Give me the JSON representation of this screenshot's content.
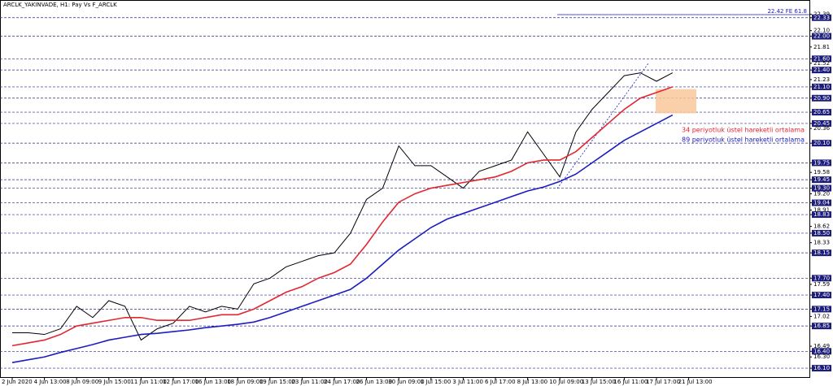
{
  "chart_data": {
    "type": "line",
    "title": "ARCLK_YAKINVADE, H1: Pay Vs F_ARCLK",
    "annotation": "22.42 FE 61.8",
    "categories": [
      "2 Jun 2020",
      null,
      "4 Jun 13:00",
      null,
      "8 Jun 09:00",
      null,
      "9 Jun 15:00",
      null,
      "11 Jun 11:00",
      null,
      "12 Jun 17:00",
      null,
      "16 Jun 13:00",
      null,
      "18 Jun 09:00",
      null,
      "19 Jun 15:00",
      null,
      "23 Jun 11:00",
      null,
      "24 Jun 17:00",
      null,
      "26 Jun 13:00",
      null,
      "30 Jun 09:00",
      null,
      "1 Jul 15:00",
      null,
      "3 Jul 11:00",
      null,
      "6 Jul 17:00",
      null,
      "8 Jul 13:00",
      null,
      "10 Jul 09:00",
      null,
      "13 Jul 15:00",
      null,
      "16 Jul 11:00",
      null,
      "17 Jul 17:00",
      null,
      "21 Jul 13:00"
    ],
    "series": [
      {
        "color": "#000000",
        "values": [
          16.73,
          16.73,
          16.7,
          16.8,
          17.2,
          17.0,
          17.3,
          17.2,
          16.6,
          16.8,
          16.9,
          17.2,
          17.1,
          17.2,
          17.15,
          17.6,
          17.7,
          17.9,
          18.0,
          18.1,
          18.15,
          18.5,
          19.1,
          19.3,
          20.05,
          19.7,
          19.7,
          19.5,
          19.3,
          19.6,
          19.7,
          19.8,
          20.3,
          19.9,
          19.5,
          20.3,
          20.7,
          21.0,
          21.3,
          21.35,
          21.2,
          21.35,
          null
        ]
      },
      {
        "name": "34 periyotluk üstel hareketli ortalama",
        "color": "#e3262f",
        "values": [
          16.5,
          16.55,
          16.6,
          16.7,
          16.85,
          16.9,
          16.95,
          17.0,
          17.0,
          16.95,
          16.95,
          16.95,
          17.0,
          17.05,
          17.05,
          17.15,
          17.3,
          17.45,
          17.55,
          17.7,
          17.8,
          17.95,
          18.3,
          18.7,
          19.05,
          19.2,
          19.3,
          19.35,
          19.4,
          19.45,
          19.5,
          19.6,
          19.75,
          19.8,
          19.8,
          19.95,
          20.2,
          20.45,
          20.7,
          20.9,
          21.0,
          21.1,
          null
        ]
      },
      {
        "name": "89 periyotluk üstel hareketli ortalama",
        "color": "#1c1cc0",
        "values": [
          16.2,
          16.25,
          16.3,
          16.38,
          16.45,
          16.52,
          16.6,
          16.65,
          16.7,
          16.72,
          16.75,
          16.78,
          16.82,
          16.85,
          16.88,
          16.92,
          17.0,
          17.1,
          17.2,
          17.3,
          17.4,
          17.5,
          17.7,
          17.95,
          18.2,
          18.4,
          18.6,
          18.75,
          18.85,
          18.95,
          19.05,
          19.15,
          19.25,
          19.32,
          19.42,
          19.55,
          19.75,
          19.95,
          20.15,
          20.3,
          20.45,
          20.6,
          null
        ]
      }
    ],
    "ylim": [
      16.0,
      22.5
    ],
    "yticks": [
      22.39,
      22.33,
      {
        "value": 22.1,
        "label": "22.10"
      },
      {
        "value": 22.0,
        "label": "22.00"
      },
      21.81,
      {
        "value": 21.6,
        "label": "21.60"
      },
      21.52,
      {
        "value": 21.4,
        "label": "21.40"
      },
      21.23,
      {
        "value": 21.1,
        "label": "21.10"
      },
      {
        "value": 20.9,
        "label": "20.90"
      },
      20.65,
      20.45,
      20.36,
      {
        "value": 20.1,
        "label": "20.10"
      },
      19.75,
      19.58,
      19.45,
      {
        "value": 19.3,
        "label": "19.30"
      },
      {
        "value": 19.2,
        "label": "19.20"
      },
      19.04,
      18.91,
      18.83,
      18.62,
      {
        "value": 18.5,
        "label": "18.50"
      },
      18.33,
      18.15,
      {
        "value": 17.7,
        "label": "17.70"
      },
      17.59,
      {
        "value": 17.4,
        "label": "17.40"
      },
      17.15,
      17.02,
      16.85,
      16.49,
      {
        "value": 16.4,
        "label": "16.40"
      },
      {
        "value": 16.3,
        "label": "16.30"
      },
      {
        "value": 16.1,
        "label": "16.10"
      }
    ],
    "levels": [
      22.33,
      22.0,
      21.6,
      21.4,
      21.1,
      20.9,
      20.65,
      20.45,
      20.1,
      19.75,
      19.45,
      19.3,
      19.04,
      18.83,
      18.5,
      18.15,
      17.7,
      17.4,
      17.15,
      16.85,
      16.4,
      16.1
    ],
    "zone": [
      21.06,
      20.63
    ]
  }
}
